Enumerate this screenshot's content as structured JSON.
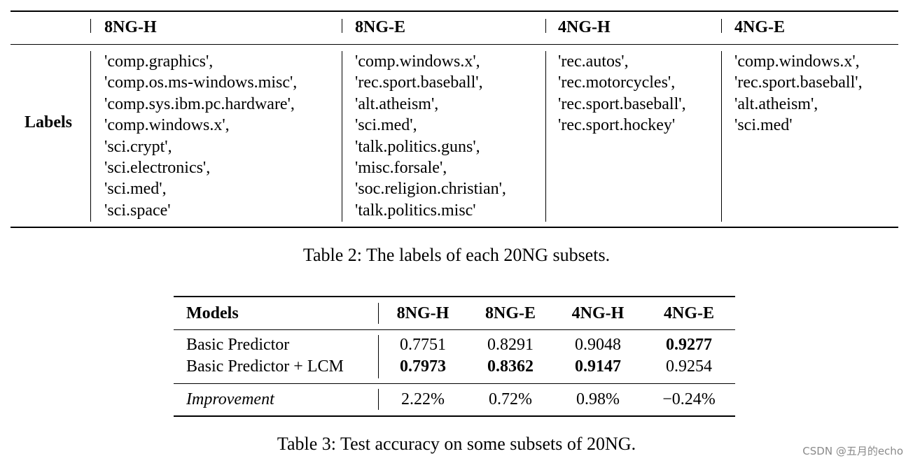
{
  "table2": {
    "row_label": "Labels",
    "columns": [
      {
        "name": "8NG-H",
        "labels": [
          "'comp.graphics',",
          "'comp.os.ms-windows.misc',",
          "'comp.sys.ibm.pc.hardware',",
          "'comp.windows.x',",
          "'sci.crypt',",
          "'sci.electronics',",
          "'sci.med',",
          "'sci.space'"
        ]
      },
      {
        "name": "8NG-E",
        "labels": [
          "'comp.windows.x',",
          "'rec.sport.baseball',",
          "'alt.atheism',",
          "'sci.med',",
          "'talk.politics.guns',",
          "'misc.forsale',",
          "'soc.religion.christian',",
          "'talk.politics.misc'"
        ]
      },
      {
        "name": "4NG-H",
        "labels": [
          "'rec.autos',",
          "'rec.motorcycles',",
          "'rec.sport.baseball',",
          "'rec.sport.hockey'"
        ]
      },
      {
        "name": "4NG-E",
        "labels": [
          "'comp.windows.x',",
          "'rec.sport.baseball',",
          "'alt.atheism',",
          "'sci.med'"
        ]
      }
    ],
    "caption": "Table 2: The labels of each 20NG subsets."
  },
  "table3": {
    "header": [
      "Models",
      "8NG-H",
      "8NG-E",
      "4NG-H",
      "4NG-E"
    ],
    "rows": [
      {
        "model": "Basic Predictor",
        "values": [
          "0.7751",
          "0.8291",
          "0.9048",
          "0.9277"
        ]
      },
      {
        "model": "Basic Predictor + LCM",
        "values": [
          "0.7973",
          "0.8362",
          "0.9147",
          "0.9254"
        ]
      }
    ],
    "improvement": {
      "label": "Improvement",
      "values": [
        "2.22%",
        "0.72%",
        "0.98%",
        "−0.24%"
      ]
    },
    "caption": "Table 3: Test accuracy on some subsets of 20NG."
  },
  "watermark": "CSDN @五月的echo"
}
